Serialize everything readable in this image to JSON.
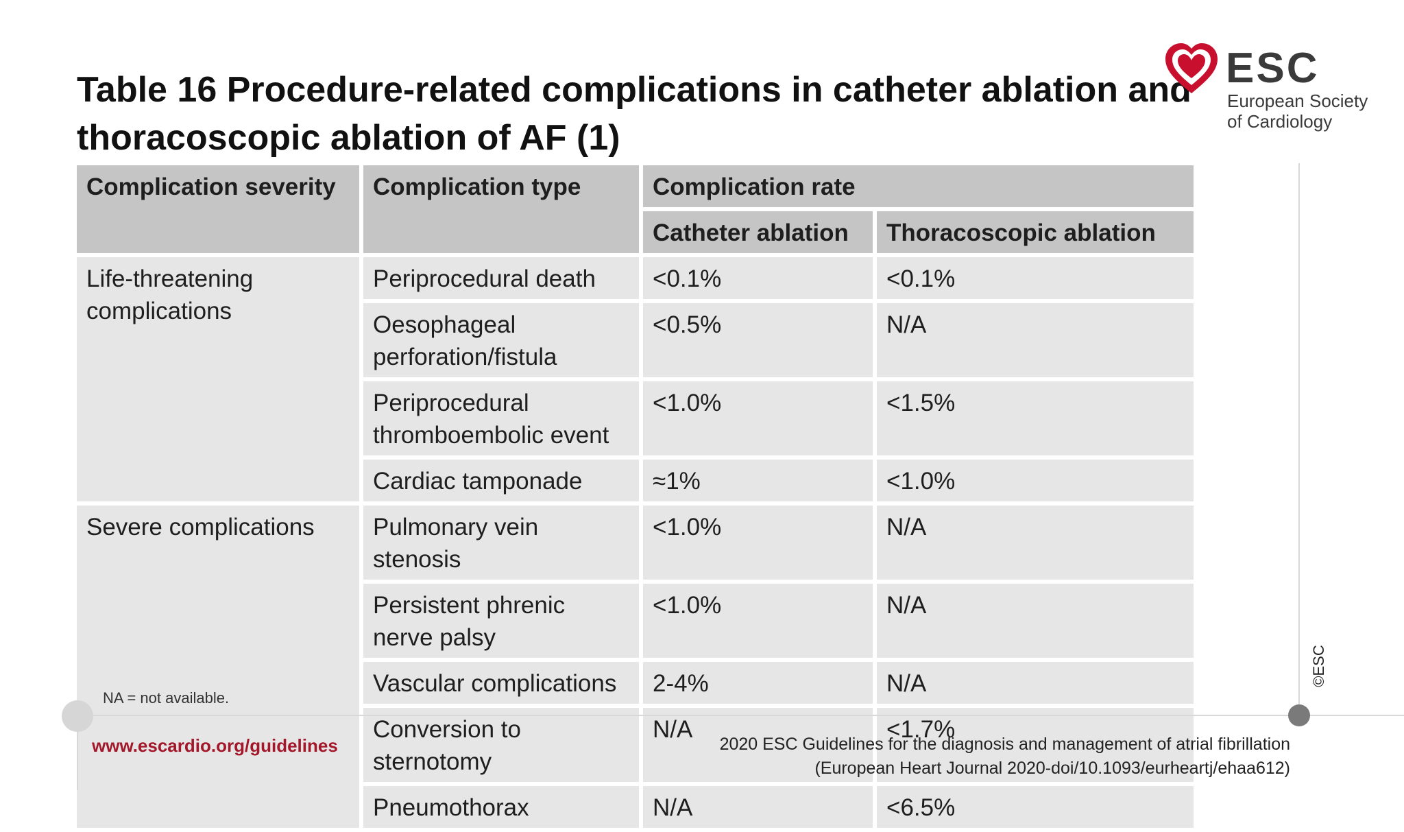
{
  "title": {
    "line1": "Table 16 Procedure-related complications in catheter ablation and",
    "line2": "thoracoscopic ablation of AF (1)"
  },
  "logo": {
    "name": "ESC",
    "subtitle_line1": "European Society",
    "subtitle_line2": "of Cardiology",
    "accent_color": "#c8102e"
  },
  "copyright": "©ESC",
  "table": {
    "headers": {
      "severity": "Complication severity",
      "type": "Complication type",
      "rate": "Complication rate",
      "catheter": "Catheter ablation",
      "thoracoscopic": "Thoracoscopic ablation"
    },
    "groups": [
      {
        "severity": "Life-threatening complications",
        "rows": [
          {
            "type": "Periprocedural death",
            "catheter": "<0.1%",
            "thoracoscopic": "<0.1%"
          },
          {
            "type": "Oesophageal perforation/fistula",
            "catheter": "<0.5%",
            "thoracoscopic": "N/A"
          },
          {
            "type": "Periprocedural thromboembolic event",
            "catheter": "<1.0%",
            "thoracoscopic": "<1.5%"
          },
          {
            "type": "Cardiac tamponade",
            "catheter": "≈1%",
            "thoracoscopic": "<1.0%"
          }
        ]
      },
      {
        "severity": "Severe complications",
        "rows": [
          {
            "type": "Pulmonary vein stenosis",
            "catheter": "<1.0%",
            "thoracoscopic": "N/A"
          },
          {
            "type": "Persistent phrenic nerve palsy",
            "catheter": "<1.0%",
            "thoracoscopic": "N/A"
          },
          {
            "type": "Vascular complications",
            "catheter": "2-4%",
            "thoracoscopic": "N/A"
          },
          {
            "type": "Conversion to sternotomy",
            "catheter": "N/A",
            "thoracoscopic": "<1.7%"
          },
          {
            "type": "Pneumothorax",
            "catheter": "N/A",
            "thoracoscopic": "<6.5%"
          }
        ]
      }
    ]
  },
  "footnote": "NA = not available.",
  "footer": {
    "url": "www.escardio.org/guidelines",
    "reference_line1": "2020 ESC Guidelines for the diagnosis and management of atrial fibrillation",
    "reference_line2": "(European Heart Journal 2020-doi/10.1093/eurheartj/ehaa612)"
  }
}
